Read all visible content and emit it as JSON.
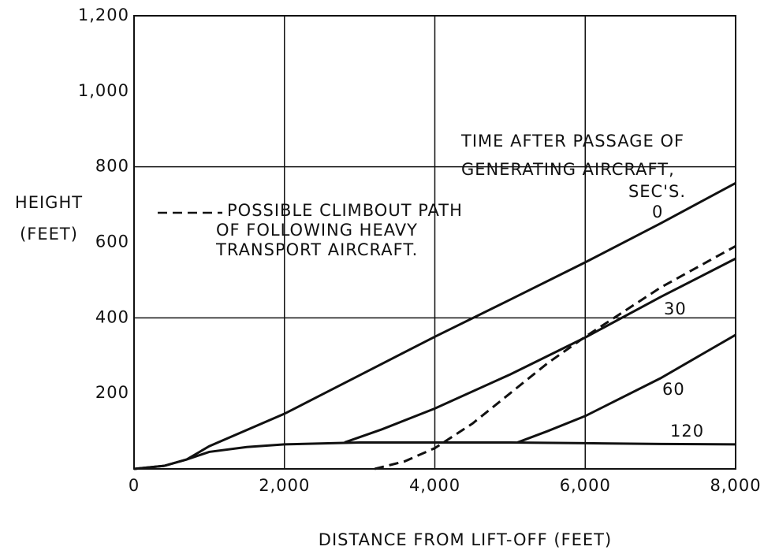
{
  "chart_data": {
    "type": "line",
    "xlabel": "DISTANCE FROM LIFT-OFF (FEET)",
    "ylabel": [
      "HEIGHT",
      "(FEET)"
    ],
    "annotation": [
      "TIME AFTER PASSAGE OF",
      "GENERATING AIRCRAFT,",
      "SEC'S."
    ],
    "xlim": [
      0,
      8000
    ],
    "xticks": [
      0,
      {
        "value": 2000,
        "label": "2,000"
      },
      {
        "value": 4000,
        "label": "4,000"
      },
      {
        "value": 6000,
        "label": "6,000"
      },
      {
        "value": 8000,
        "label": "8,000"
      }
    ],
    "ylim": [
      0,
      1200
    ],
    "yticks": [
      200,
      400,
      600,
      800,
      {
        "value": 1000,
        "label": "1,000"
      },
      {
        "value": 1200,
        "label": "1,200"
      }
    ],
    "grid": true,
    "color": "#111111",
    "series": [
      {
        "name": "0",
        "style": "solid",
        "x": [
          0,
          400,
          700,
          1000,
          2000,
          3000,
          4000,
          5000,
          6000,
          7000,
          8000
        ],
        "values": [
          0,
          8,
          25,
          60,
          146,
          248,
          350,
          448,
          547,
          650,
          757
        ]
      },
      {
        "name": "30",
        "style": "solid",
        "x": [
          2800,
          3300,
          4000,
          5000,
          6000,
          7000,
          8000
        ],
        "values": [
          70,
          105,
          160,
          250,
          348,
          455,
          557
        ]
      },
      {
        "name": "60",
        "style": "solid",
        "x": [
          5100,
          5500,
          6000,
          7000,
          8000
        ],
        "values": [
          70,
          100,
          140,
          240,
          355
        ]
      },
      {
        "name": "120",
        "style": "solid",
        "x": [
          0,
          400,
          700,
          1000,
          1500,
          2000,
          3000,
          4000,
          5000,
          6000,
          7000,
          8000
        ],
        "values": [
          0,
          8,
          25,
          45,
          58,
          65,
          70,
          70,
          70,
          68,
          66,
          65
        ]
      },
      {
        "name": "POSSIBLE CLIMBOUT PATH OF FOLLOWING HEAVY TRANSPORT AIRCRAFT.",
        "style": "dashed",
        "x": [
          3200,
          3600,
          4000,
          4500,
          5000,
          5500,
          6000,
          7000,
          8000
        ],
        "values": [
          0,
          20,
          55,
          120,
          200,
          280,
          350,
          480,
          590
        ]
      }
    ]
  }
}
